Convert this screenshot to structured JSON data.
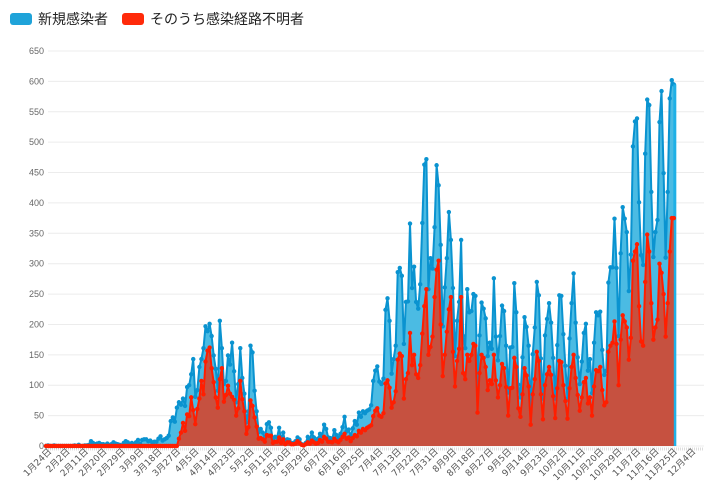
{
  "legend": {
    "items": [
      {
        "label": "新規感染者",
        "color": "#1fa3d9"
      },
      {
        "label": "そのうち感染経路不明者",
        "color": "#ff2a0a"
      }
    ]
  },
  "colors": {
    "new_line": "#0a93d0",
    "new_fill": "#4bbbe3",
    "unknown_line": "#ff1e00",
    "unknown_fill": "#c65140",
    "grid": "#ececec"
  },
  "chart_data": {
    "type": "area",
    "title": "",
    "xlabel": "",
    "ylabel": "",
    "ylim": [
      0,
      650
    ],
    "yticks": [
      0,
      50,
      100,
      150,
      200,
      250,
      300,
      350,
      400,
      450,
      500,
      550,
      600,
      650
    ],
    "grid": true,
    "legend_position": "top-left",
    "start_date": "1月24日",
    "x_tick_labels": [
      "1月24日",
      "2月2日",
      "2月11日",
      "2月20日",
      "2月29日",
      "3月9日",
      "3月18日",
      "3月27日",
      "4月5日",
      "4月14日",
      "4月23日",
      "5月2日",
      "5月11日",
      "5月20日",
      "5月29日",
      "6月7日",
      "6月16日",
      "6月25日",
      "7月4日",
      "7月13日",
      "7月22日",
      "7月31日",
      "8月9日",
      "8月18日",
      "8月27日",
      "9月5日",
      "9月14日",
      "9月23日",
      "10月2日",
      "10月11日",
      "10月20日",
      "10月29日",
      "11月7日",
      "11月16日",
      "11月25日",
      "12月4日"
    ],
    "x_tick_interval_days": 9,
    "series": [
      {
        "name": "新規感染者",
        "values": [
          0,
          1,
          0,
          0,
          1,
          0,
          0,
          0,
          0,
          0,
          0,
          0,
          0,
          0,
          1,
          0,
          2,
          0,
          0,
          1,
          1,
          2,
          8,
          5,
          3,
          4,
          5,
          3,
          3,
          2,
          4,
          1,
          3,
          6,
          4,
          3,
          2,
          1,
          5,
          8,
          6,
          2,
          5,
          3,
          6,
          10,
          3,
          10,
          11,
          11,
          8,
          9,
          6,
          7,
          7,
          12,
          16,
          9,
          11,
          13,
          17,
          41,
          47,
          40,
          63,
          72,
          68,
          78,
          66,
          97,
          100,
          118,
          143,
          81,
          92,
          130,
          143,
          161,
          197,
          189,
          201,
          181,
          149,
          127,
          91,
          206,
          161,
          102,
          107,
          149,
          134,
          170,
          123,
          72,
          102,
          161,
          112,
          86,
          39,
          57,
          165,
          154,
          91,
          57,
          23,
          28,
          22,
          10,
          36,
          39,
          30,
          9,
          15,
          14,
          30,
          10,
          22,
          5,
          11,
          10,
          5,
          5,
          8,
          14,
          11,
          3,
          2,
          5,
          15,
          10,
          22,
          14,
          8,
          12,
          20,
          16,
          35,
          28,
          14,
          13,
          12,
          26,
          18,
          13,
          20,
          31,
          48,
          24,
          27,
          16,
          29,
          41,
          35,
          55,
          48,
          57,
          54,
          58,
          60,
          67,
          107,
          124,
          131,
          106,
          102,
          111,
          224,
          243,
          206,
          119,
          143,
          165,
          286,
          293,
          280,
          168,
          237,
          238,
          366,
          260,
          295,
          237,
          226,
          266,
          367,
          463,
          472,
          258,
          309,
          292,
          360,
          462,
          429,
          331,
          197,
          261,
          309,
          385,
          339,
          260,
          148,
          206,
          237,
          339,
          181,
          161,
          258,
          220,
          222,
          250,
          247,
          95,
          182,
          236,
          226,
          210,
          148,
          170,
          160,
          276,
          180,
          141,
          181,
          231,
          222,
          165,
          88,
          162,
          163,
          268,
          220,
          101,
          80,
          146,
          212,
          196,
          165,
          59,
          151,
          195,
          270,
          248,
          144,
          78,
          182,
          209,
          235,
          203,
          145,
          78,
          166,
          248,
          247,
          184,
          132,
          78,
          177,
          235,
          284,
          203,
          146,
          102,
          139,
          186,
          201,
          124,
          143,
          87,
          170,
          220,
          215,
          221,
          158,
          117,
          124,
          269,
          294,
          294,
          374,
          293,
          181,
          317,
          393,
          374,
          352,
          255,
          315,
          493,
          534,
          539,
          401,
          314,
          298,
          481,
          570,
          561,
          418,
          311,
          352,
          372,
          533,
          584,
          449,
          310,
          418,
          572,
          602,
          595
        ]
      },
      {
        "name": "そのうち感染経路不明者",
        "values": [
          0,
          0,
          0,
          0,
          0,
          0,
          0,
          0,
          0,
          0,
          0,
          0,
          0,
          0,
          0,
          0,
          0,
          0,
          0,
          0,
          0,
          0,
          0,
          0,
          0,
          0,
          0,
          0,
          0,
          0,
          0,
          0,
          0,
          0,
          0,
          0,
          0,
          0,
          0,
          0,
          0,
          0,
          0,
          0,
          0,
          0,
          0,
          0,
          0,
          0,
          0,
          0,
          0,
          0,
          0,
          0,
          0,
          0,
          0,
          0,
          0,
          0,
          0,
          0,
          0,
          12,
          22,
          38,
          25,
          52,
          49,
          80,
          59,
          36,
          61,
          78,
          107,
          85,
          139,
          157,
          162,
          128,
          105,
          80,
          63,
          110,
          128,
          73,
          84,
          99,
          86,
          81,
          76,
          50,
          62,
          107,
          77,
          57,
          20,
          31,
          75,
          66,
          47,
          32,
          12,
          13,
          11,
          7,
          18,
          17,
          17,
          5,
          7,
          7,
          14,
          5,
          11,
          3,
          6,
          6,
          3,
          3,
          4,
          8,
          5,
          2,
          1,
          3,
          6,
          4,
          9,
          6,
          4,
          5,
          10,
          7,
          15,
          12,
          7,
          7,
          6,
          12,
          8,
          6,
          10,
          15,
          20,
          12,
          14,
          8,
          13,
          18,
          16,
          25,
          22,
          28,
          26,
          30,
          32,
          34,
          49,
          58,
          62,
          50,
          48,
          54,
          103,
          108,
          96,
          63,
          72,
          90,
          142,
          152,
          148,
          78,
          110,
          120,
          186,
          133,
          150,
          118,
          112,
          133,
          185,
          230,
          258,
          150,
          163,
          180,
          245,
          290,
          305,
          200,
          115,
          150,
          188,
          225,
          245,
          155,
          98,
          140,
          160,
          245,
          120,
          110,
          150,
          140,
          150,
          168,
          165,
          55,
          120,
          150,
          145,
          130,
          92,
          108,
          102,
          150,
          108,
          80,
          100,
          135,
          128,
          97,
          50,
          95,
          96,
          145,
          130,
          62,
          48,
          85,
          128,
          116,
          98,
          35,
          85,
          110,
          155,
          140,
          85,
          44,
          100,
          118,
          130,
          117,
          82,
          46,
          95,
          140,
          138,
          100,
          74,
          45,
          95,
          130,
          150,
          112,
          84,
          58,
          80,
          105,
          112,
          70,
          80,
          50,
          98,
          125,
          123,
          130,
          92,
          67,
          72,
          155,
          165,
          170,
          205,
          168,
          100,
          175,
          215,
          205,
          195,
          142,
          178,
          305,
          320,
          332,
          230,
          172,
          165,
          270,
          348,
          320,
          235,
          175,
          195,
          208,
          300,
          285,
          250,
          180,
          235,
          320,
          375,
          375
        ]
      }
    ]
  }
}
